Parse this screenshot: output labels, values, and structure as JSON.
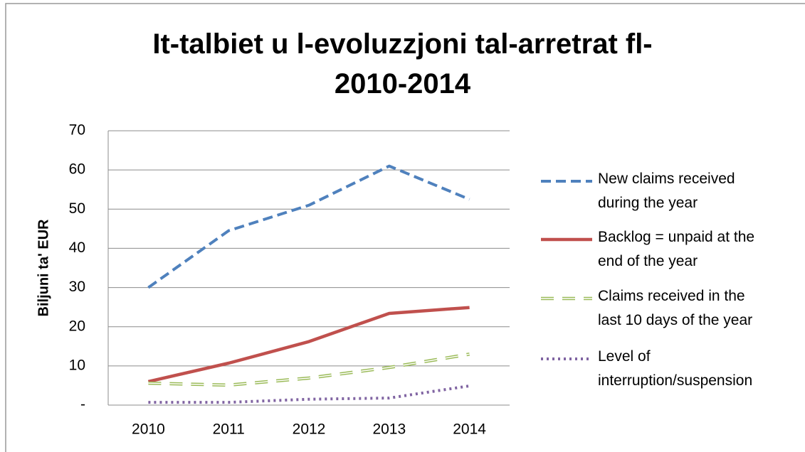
{
  "chart_data": {
    "type": "line",
    "title": [
      "It-talbiet u l-evoluzzjoni tal-arretrat fl-",
      "2010-2014"
    ],
    "y_label": "Biljuni ta' EUR",
    "categories": [
      "2010",
      "2011",
      "2012",
      "2013",
      "2014"
    ],
    "series": [
      {
        "name": "New claims received during the year",
        "color": "#4f81bd",
        "style": "dashed",
        "values": [
          30,
          44.5,
          51,
          61,
          52.5
        ]
      },
      {
        "name": "Backlog = unpaid at the end of the year",
        "color": "#c0504d",
        "style": "solid",
        "values": [
          6,
          10.7,
          16.2,
          23.4,
          24.9
        ]
      },
      {
        "name": "Claims received in the last 10 days of the year",
        "color": "#9bbb59",
        "style": "hollow-dash",
        "values": [
          5.6,
          5.1,
          6.9,
          9.6,
          13
        ]
      },
      {
        "name": "Level of interruption/suspension",
        "color": "#8064a2",
        "style": "dotted",
        "values": [
          0.7,
          0.7,
          1.5,
          1.8,
          4.9
        ]
      }
    ],
    "ylim": [
      0,
      70
    ],
    "yticks": [
      {
        "value": 0,
        "label": "-"
      },
      10,
      20,
      30,
      40,
      50,
      60,
      70
    ],
    "grid": true,
    "legend": "right"
  }
}
